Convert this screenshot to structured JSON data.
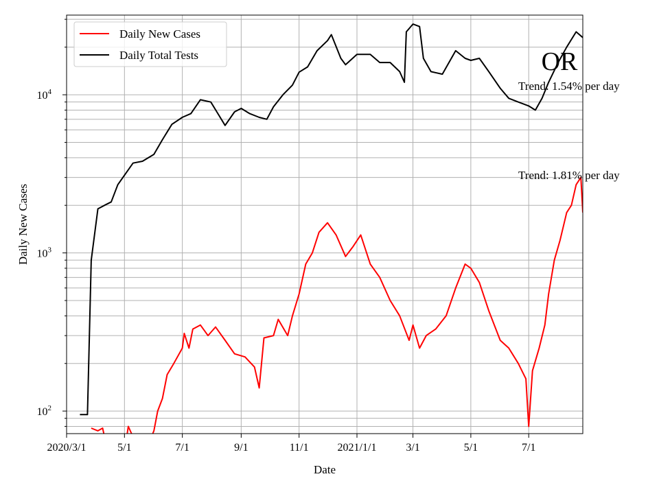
{
  "chart_data": {
    "type": "line",
    "title": "OR",
    "xlabel": "Date",
    "ylabel": "Daily New Cases",
    "yscale": "log",
    "ylim": [
      72,
      31900
    ],
    "xlim": [
      "2020-03-01",
      "2021-08-27"
    ],
    "grid": true,
    "legend_placement": "top-left",
    "x_ticks": [
      {
        "date": "2020-03-01",
        "label": "2020/3/1"
      },
      {
        "date": "2020-05-01",
        "label": "5/1"
      },
      {
        "date": "2020-07-01",
        "label": "7/1"
      },
      {
        "date": "2020-09-01",
        "label": "9/1"
      },
      {
        "date": "2020-11-01",
        "label": "11/1"
      },
      {
        "date": "2021-01-01",
        "label": "2021/1/1"
      },
      {
        "date": "2021-03-01",
        "label": "3/1"
      },
      {
        "date": "2021-05-01",
        "label": "5/1"
      },
      {
        "date": "2021-07-01",
        "label": "7/1"
      }
    ],
    "y_ticks": [
      {
        "value": 100,
        "base": "10",
        "exp": "2"
      },
      {
        "value": 1000,
        "base": "10",
        "exp": "3"
      },
      {
        "value": 10000,
        "base": "10",
        "exp": "4"
      }
    ],
    "annotations": [
      {
        "text": "Trend: 1.54% per day",
        "series": "Daily Total Tests"
      },
      {
        "text": "Trend: 1.81% per day",
        "series": "Daily New Cases"
      }
    ],
    "series": [
      {
        "name": "Daily New Cases",
        "color": "#ff0000",
        "points": [
          [
            "2020-03-27",
            78
          ],
          [
            "2020-04-03",
            75
          ],
          [
            "2020-04-08",
            78
          ],
          [
            "2020-04-15",
            50
          ],
          [
            "2020-05-01",
            55
          ],
          [
            "2020-05-05",
            80
          ],
          [
            "2020-05-08",
            73
          ],
          [
            "2020-05-20",
            50
          ],
          [
            "2020-06-01",
            75
          ],
          [
            "2020-06-05",
            100
          ],
          [
            "2020-06-10",
            120
          ],
          [
            "2020-06-15",
            170
          ],
          [
            "2020-06-22",
            200
          ],
          [
            "2020-07-01",
            250
          ],
          [
            "2020-07-03",
            310
          ],
          [
            "2020-07-08",
            250
          ],
          [
            "2020-07-12",
            330
          ],
          [
            "2020-07-20",
            350
          ],
          [
            "2020-07-28",
            300
          ],
          [
            "2020-08-05",
            340
          ],
          [
            "2020-08-15",
            280
          ],
          [
            "2020-08-25",
            230
          ],
          [
            "2020-09-05",
            220
          ],
          [
            "2020-09-15",
            190
          ],
          [
            "2020-09-20",
            140
          ],
          [
            "2020-09-25",
            290
          ],
          [
            "2020-10-05",
            300
          ],
          [
            "2020-10-10",
            380
          ],
          [
            "2020-10-20",
            300
          ],
          [
            "2020-10-25",
            400
          ],
          [
            "2020-11-01",
            550
          ],
          [
            "2020-11-08",
            850
          ],
          [
            "2020-11-15",
            1000
          ],
          [
            "2020-11-22",
            1350
          ],
          [
            "2020-12-01",
            1550
          ],
          [
            "2020-12-10",
            1300
          ],
          [
            "2020-12-20",
            950
          ],
          [
            "2020-12-28",
            1100
          ],
          [
            "2021-01-05",
            1300
          ],
          [
            "2021-01-15",
            850
          ],
          [
            "2021-01-25",
            700
          ],
          [
            "2021-02-05",
            500
          ],
          [
            "2021-02-15",
            400
          ],
          [
            "2021-02-25",
            280
          ],
          [
            "2021-03-01",
            350
          ],
          [
            "2021-03-08",
            250
          ],
          [
            "2021-03-15",
            300
          ],
          [
            "2021-03-25",
            330
          ],
          [
            "2021-04-05",
            400
          ],
          [
            "2021-04-15",
            600
          ],
          [
            "2021-04-25",
            850
          ],
          [
            "2021-05-01",
            800
          ],
          [
            "2021-05-10",
            650
          ],
          [
            "2021-05-20",
            430
          ],
          [
            "2021-06-01",
            280
          ],
          [
            "2021-06-10",
            250
          ],
          [
            "2021-06-20",
            200
          ],
          [
            "2021-06-28",
            160
          ],
          [
            "2021-07-01",
            80
          ],
          [
            "2021-07-05",
            180
          ],
          [
            "2021-07-12",
            250
          ],
          [
            "2021-07-18",
            350
          ],
          [
            "2021-07-22",
            550
          ],
          [
            "2021-07-28",
            900
          ],
          [
            "2021-08-03",
            1200
          ],
          [
            "2021-08-10",
            1800
          ],
          [
            "2021-08-15",
            2000
          ],
          [
            "2021-08-20",
            2700
          ],
          [
            "2021-08-25",
            3000
          ],
          [
            "2021-08-27",
            1800
          ]
        ]
      },
      {
        "name": "Daily Total Tests",
        "color": "#000000",
        "points": [
          [
            "2020-03-15",
            95
          ],
          [
            "2020-03-23",
            95
          ],
          [
            "2020-03-27",
            900
          ],
          [
            "2020-04-03",
            1900
          ],
          [
            "2020-04-10",
            2000
          ],
          [
            "2020-04-17",
            2100
          ],
          [
            "2020-04-24",
            2700
          ],
          [
            "2020-05-01",
            3100
          ],
          [
            "2020-05-10",
            3700
          ],
          [
            "2020-05-20",
            3800
          ],
          [
            "2020-06-01",
            4200
          ],
          [
            "2020-06-10",
            5200
          ],
          [
            "2020-06-20",
            6500
          ],
          [
            "2020-07-01",
            7200
          ],
          [
            "2020-07-10",
            7600
          ],
          [
            "2020-07-20",
            9300
          ],
          [
            "2020-07-31",
            9000
          ],
          [
            "2020-08-08",
            7500
          ],
          [
            "2020-08-15",
            6400
          ],
          [
            "2020-08-25",
            7800
          ],
          [
            "2020-09-01",
            8200
          ],
          [
            "2020-09-10",
            7600
          ],
          [
            "2020-09-20",
            7200
          ],
          [
            "2020-09-28",
            7000
          ],
          [
            "2020-10-05",
            8400
          ],
          [
            "2020-10-15",
            10000
          ],
          [
            "2020-10-25",
            11500
          ],
          [
            "2020-11-01",
            13900
          ],
          [
            "2020-11-10",
            15000
          ],
          [
            "2020-11-20",
            19000
          ],
          [
            "2020-12-01",
            22000
          ],
          [
            "2020-12-05",
            24000
          ],
          [
            "2020-12-15",
            17000
          ],
          [
            "2020-12-20",
            15500
          ],
          [
            "2021-01-01",
            18000
          ],
          [
            "2021-01-15",
            18000
          ],
          [
            "2021-01-25",
            16000
          ],
          [
            "2021-02-05",
            16000
          ],
          [
            "2021-02-15",
            14000
          ],
          [
            "2021-02-20",
            12000
          ],
          [
            "2021-02-22",
            25000
          ],
          [
            "2021-03-01",
            28000
          ],
          [
            "2021-03-08",
            27000
          ],
          [
            "2021-03-12",
            17000
          ],
          [
            "2021-03-20",
            14000
          ],
          [
            "2021-04-01",
            13500
          ],
          [
            "2021-04-15",
            19000
          ],
          [
            "2021-04-25",
            17000
          ],
          [
            "2021-05-01",
            16500
          ],
          [
            "2021-05-10",
            17000
          ],
          [
            "2021-05-20",
            14000
          ],
          [
            "2021-06-01",
            11000
          ],
          [
            "2021-06-10",
            9500
          ],
          [
            "2021-06-20",
            9000
          ],
          [
            "2021-07-01",
            8500
          ],
          [
            "2021-07-08",
            8000
          ],
          [
            "2021-07-15",
            9500
          ],
          [
            "2021-07-22",
            12000
          ],
          [
            "2021-08-01",
            16000
          ],
          [
            "2021-08-10",
            20000
          ],
          [
            "2021-08-20",
            25000
          ],
          [
            "2021-08-27",
            23000
          ]
        ]
      }
    ]
  }
}
